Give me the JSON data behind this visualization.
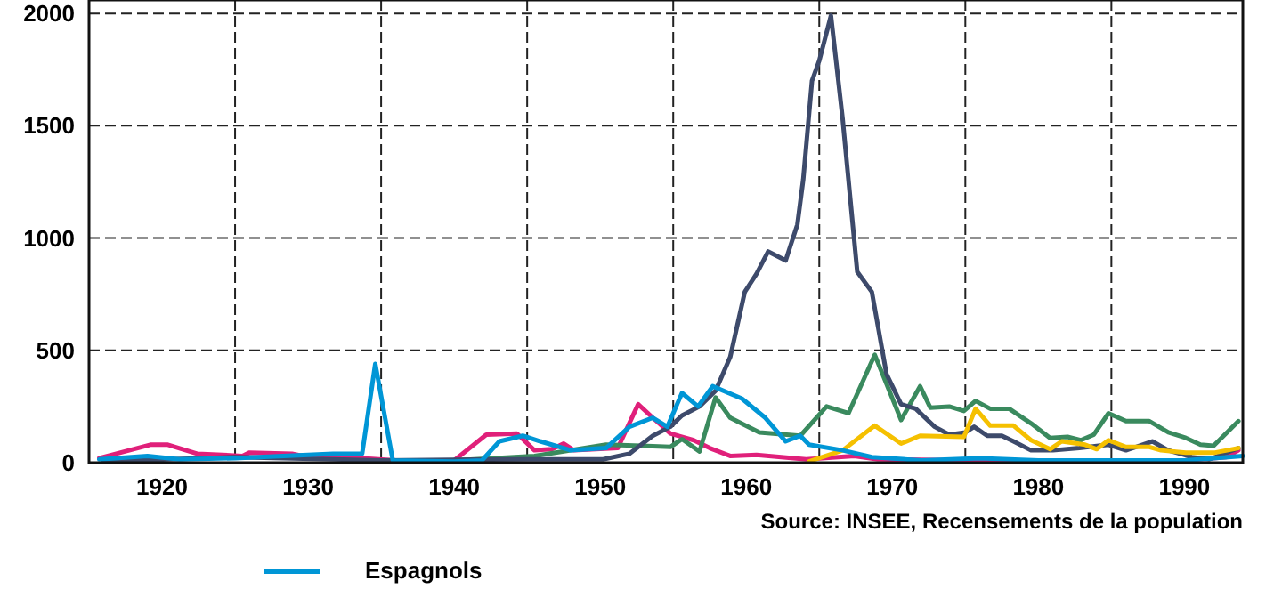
{
  "chart_data": {
    "type": "line",
    "xlim": [
      1915,
      1994
    ],
    "ylim": [
      0,
      2060
    ],
    "xticks": [
      1920,
      {
        "value": 1925,
        "label": null
      },
      1930,
      {
        "value": 1935,
        "label": null
      },
      1940,
      {
        "value": 1945,
        "label": null
      },
      1950,
      {
        "value": 1955,
        "label": null
      },
      1960,
      {
        "value": 1965,
        "label": null
      },
      1970,
      {
        "value": 1975,
        "label": null
      },
      1980,
      {
        "value": 1985,
        "label": null
      },
      1990
    ],
    "yticks": [
      0,
      500,
      1000,
      1500,
      2000
    ],
    "grid": true,
    "legend": "bottom",
    "line_style": "solid",
    "annotations": [
      "Source: INSEE, Recensements de la population"
    ],
    "series": [
      {
        "color": "#e0207a",
        "x": [
          1915.7,
          1919.2,
          1920.4,
          1922.4,
          1925.5,
          1926,
          1928.9,
          1930,
          1933.7,
          1936,
          1940,
          1942.2,
          1944.3,
          1945.5,
          1946.7,
          1947.5,
          1948.2,
          1951.2,
          1952.6,
          1953.6,
          1954.8,
          1956.4,
          1957.5,
          1958.9,
          1960.7,
          1964.1,
          1967.4,
          1969,
          1975,
          1990,
          1992.9,
          1993.7
        ],
        "values": [
          20,
          80,
          80,
          40,
          30,
          45,
          40,
          25,
          20,
          10,
          10,
          125,
          130,
          55,
          60,
          85,
          55,
          65,
          260,
          200,
          130,
          100,
          65,
          30,
          35,
          15,
          30,
          15,
          10,
          10,
          25,
          55
        ]
      },
      {
        "color": "#3a8a5e",
        "x": [
          1934.4,
          1940,
          1945.5,
          1950.4,
          1952.8,
          1954.8,
          1955.6,
          1956.8,
          1957.9,
          1958.9,
          1960.9,
          1963.7,
          1965.5,
          1967,
          1968.8,
          1970.6,
          1971.9,
          1972.6,
          1973.9,
          1974.9,
          1975.7,
          1976.7,
          1978,
          1979.5,
          1980.8,
          1982,
          1982.9,
          1983.8,
          1984.8,
          1986,
          1987.6,
          1988.9,
          1990.1,
          1991.1,
          1992,
          1993.7
        ],
        "values": [
          5,
          10,
          30,
          80,
          75,
          70,
          105,
          50,
          290,
          200,
          135,
          120,
          250,
          220,
          480,
          190,
          340,
          245,
          250,
          230,
          275,
          240,
          240,
          175,
          110,
          115,
          100,
          125,
          220,
          185,
          185,
          135,
          110,
          80,
          75,
          185
        ]
      },
      {
        "color": "#3d4a6b",
        "x": [
          1916,
          1925,
          1935,
          1945,
          1950.2,
          1952,
          1953.6,
          1954.8,
          1955.6,
          1956.8,
          1957.9,
          1958.9,
          1959.9,
          1960.7,
          1961.5,
          1962.7,
          1963.5,
          1963.9,
          1964.5,
          1965,
          1965.8,
          1966.6,
          1967.6,
          1968.6,
          1969.6,
          1970.6,
          1971.6,
          1972.9,
          1973.9,
          1975,
          1975.6,
          1976.5,
          1977.5,
          1978.3,
          1979.5,
          1981,
          1982.8,
          1984.8,
          1986,
          1987.8,
          1988.9,
          1990.5,
          1991.7,
          1993.7
        ],
        "values": [
          5,
          25,
          10,
          15,
          15,
          40,
          120,
          160,
          210,
          250,
          320,
          470,
          760,
          840,
          940,
          900,
          1060,
          1260,
          1700,
          1790,
          1990,
          1530,
          850,
          760,
          395,
          260,
          240,
          160,
          125,
          135,
          160,
          120,
          120,
          95,
          55,
          55,
          65,
          80,
          55,
          95,
          55,
          25,
          15,
          65
        ]
      },
      {
        "color": "#f5c000",
        "x": [
          1964.3,
          1966.6,
          1968.8,
          1970.6,
          1971.9,
          1974.9,
          1975.7,
          1976.7,
          1978.3,
          1979.5,
          1980.8,
          1981.6,
          1983.2,
          1984,
          1984.8,
          1986,
          1987.6,
          1988.4,
          1990.1,
          1992.1,
          1993.7
        ],
        "values": [
          5,
          55,
          165,
          85,
          120,
          115,
          240,
          165,
          165,
          100,
          60,
          95,
          80,
          60,
          100,
          70,
          70,
          55,
          45,
          45,
          65
        ]
      },
      {
        "name": "Espagnols",
        "color": "#0096d6",
        "x": [
          1915.7,
          1919,
          1921.2,
          1925,
          1931.7,
          1933.7,
          1934.6,
          1935.8,
          1940,
          1941.9,
          1943.1,
          1944.7,
          1945.9,
          1948,
          1950.4,
          1952,
          1953.6,
          1954.6,
          1955.6,
          1956.7,
          1957.7,
          1959.7,
          1961.3,
          1962.7,
          1963.7,
          1964.3,
          1966.6,
          1968.6,
          1972,
          1976,
          1980,
          1990,
          1994
        ],
        "values": [
          15,
          30,
          15,
          20,
          40,
          40,
          440,
          10,
          5,
          10,
          95,
          120,
          95,
          55,
          65,
          160,
          200,
          160,
          310,
          250,
          340,
          285,
          200,
          95,
          120,
          80,
          55,
          25,
          10,
          20,
          10,
          10,
          30
        ]
      }
    ]
  }
}
